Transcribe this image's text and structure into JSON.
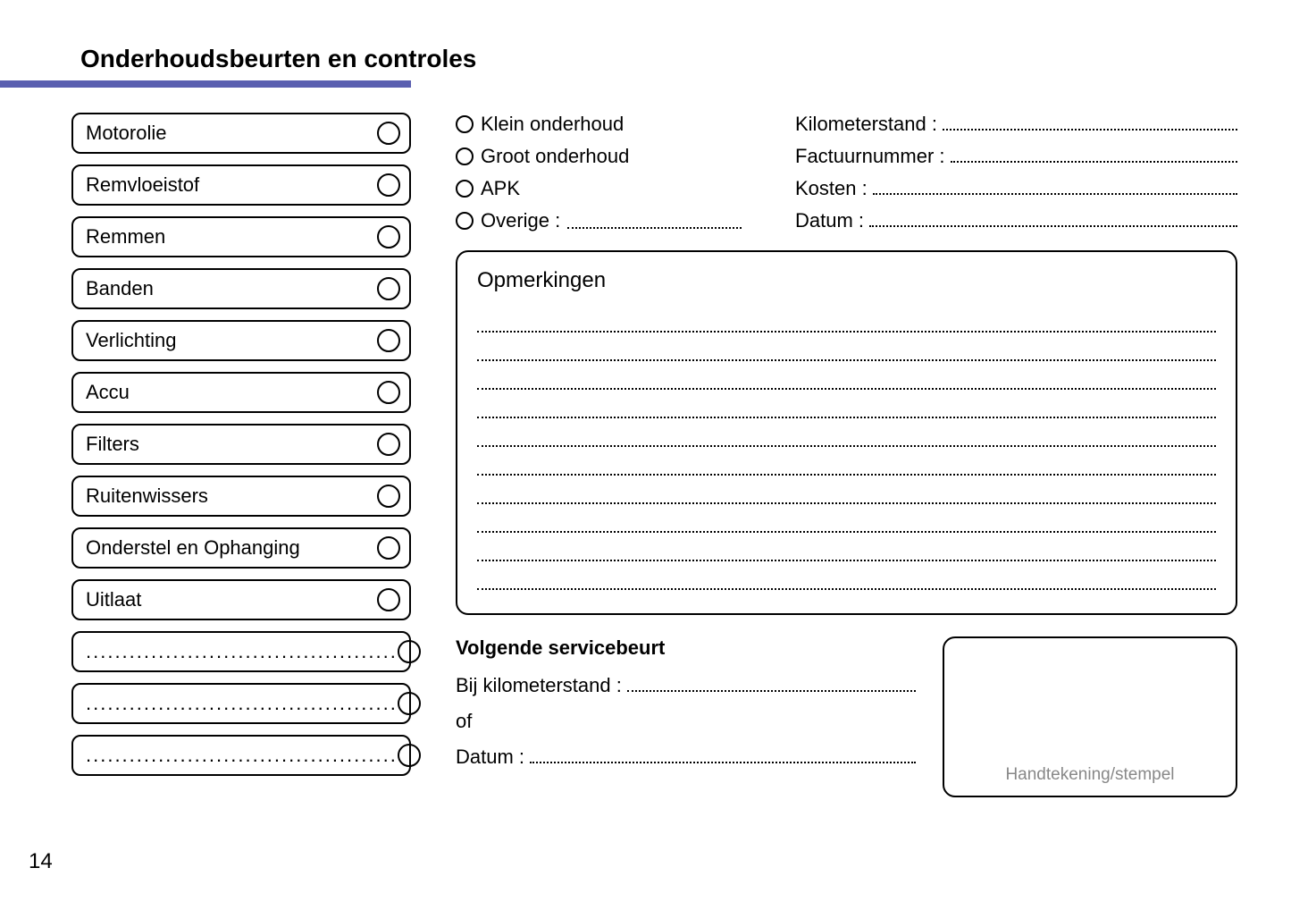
{
  "page": {
    "title": "Onderhoudsbeurten en controles",
    "number": "14",
    "rule_color": "#5a5fb0"
  },
  "checklist": {
    "items": [
      {
        "label": "Motorolie"
      },
      {
        "label": "Remvloeistof"
      },
      {
        "label": "Remmen"
      },
      {
        "label": "Banden"
      },
      {
        "label": "Verlichting"
      },
      {
        "label": "Accu"
      },
      {
        "label": "Filters"
      },
      {
        "label": "Ruitenwissers"
      },
      {
        "label": "Onderstel en Ophanging"
      },
      {
        "label": "Uitlaat"
      }
    ],
    "blank_rows": 3,
    "blank_placeholder": "..........................................."
  },
  "service_type": {
    "options": [
      {
        "label": "Klein onderhoud",
        "has_fill": false
      },
      {
        "label": "Groot onderhoud",
        "has_fill": false
      },
      {
        "label": "APK",
        "has_fill": false
      },
      {
        "label": "Overige :",
        "has_fill": true
      }
    ]
  },
  "details": {
    "fields": [
      {
        "label": "Kilometerstand :"
      },
      {
        "label": "Factuurnummer :"
      },
      {
        "label": "Kosten :"
      },
      {
        "label": "Datum :"
      }
    ]
  },
  "remarks": {
    "title": "Opmerkingen",
    "line_count": 10
  },
  "next_service": {
    "title": "Volgende servicebeurt",
    "km_label": "Bij kilometerstand :",
    "of_label": "of",
    "date_label": "Datum :"
  },
  "signature": {
    "label": "Handtekening/stempel"
  }
}
